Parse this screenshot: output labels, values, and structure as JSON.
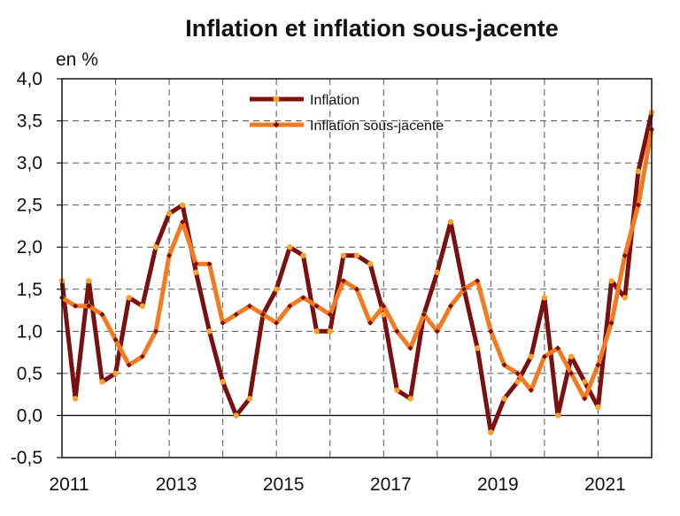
{
  "chart_data": {
    "type": "line",
    "title": "Inflation et inflation sous-jacente",
    "ylabel": "en %",
    "xlabel": "",
    "ylim": [
      -0.5,
      4.0
    ],
    "yticks": [
      -0.5,
      0.0,
      0.5,
      1.0,
      1.5,
      2.0,
      2.5,
      3.0,
      3.5,
      4.0
    ],
    "ytick_labels": [
      "-0,5",
      "0,0",
      "0,5",
      "1,0",
      "1,5",
      "2,0",
      "2,5",
      "3,0",
      "3,5",
      "4,0"
    ],
    "xlim": [
      2011.0,
      2022.0
    ],
    "xticks": [
      2011,
      2013,
      2015,
      2017,
      2019,
      2021
    ],
    "xtick_labels": [
      "2011",
      "2013",
      "2015",
      "2017",
      "2019",
      "2021"
    ],
    "vgrid": [
      2012,
      2013,
      2014,
      2015,
      2016,
      2017,
      2018,
      2019,
      2020,
      2021,
      2022
    ],
    "grid": true,
    "legend_position": "top-center",
    "series": [
      {
        "name": "Inflation",
        "color": "#7b1010",
        "marker_color": "#f7a32a",
        "x": [
          2011.0,
          2011.25,
          2011.5,
          2011.75,
          2012.0,
          2012.25,
          2012.5,
          2012.75,
          2013.0,
          2013.25,
          2013.5,
          2013.75,
          2014.0,
          2014.25,
          2014.5,
          2014.75,
          2015.0,
          2015.25,
          2015.5,
          2015.75,
          2016.0,
          2016.25,
          2016.5,
          2016.75,
          2017.0,
          2017.25,
          2017.5,
          2017.75,
          2018.0,
          2018.25,
          2018.5,
          2018.75,
          2019.0,
          2019.25,
          2019.5,
          2019.75,
          2020.0,
          2020.25,
          2020.5,
          2020.75,
          2021.0,
          2021.25,
          2021.5,
          2021.75,
          2022.0
        ],
        "values": [
          1.6,
          0.2,
          1.6,
          0.4,
          0.5,
          1.4,
          1.3,
          2.0,
          2.4,
          2.5,
          1.7,
          1.0,
          0.4,
          0.0,
          0.2,
          1.2,
          1.5,
          2.0,
          1.9,
          1.0,
          1.0,
          1.9,
          1.9,
          1.8,
          1.2,
          0.3,
          0.2,
          1.2,
          1.7,
          2.3,
          1.5,
          0.8,
          -0.2,
          0.2,
          0.4,
          0.7,
          1.4,
          0.0,
          0.7,
          0.4,
          0.1,
          1.6,
          1.4,
          2.9,
          3.6
        ]
      },
      {
        "name": "Inflation sous-jacente",
        "color": "#f47a1f",
        "marker_color": "#7b1010",
        "x": [
          2011.0,
          2011.25,
          2011.5,
          2011.75,
          2012.0,
          2012.25,
          2012.5,
          2012.75,
          2013.0,
          2013.25,
          2013.5,
          2013.75,
          2014.0,
          2014.25,
          2014.5,
          2014.75,
          2015.0,
          2015.25,
          2015.5,
          2015.75,
          2016.0,
          2016.25,
          2016.5,
          2016.75,
          2017.0,
          2017.25,
          2017.5,
          2017.75,
          2018.0,
          2018.25,
          2018.5,
          2018.75,
          2019.0,
          2019.25,
          2019.5,
          2019.75,
          2020.0,
          2020.25,
          2020.5,
          2020.75,
          2021.0,
          2021.25,
          2021.5,
          2021.75,
          2022.0
        ],
        "values": [
          1.4,
          1.3,
          1.3,
          1.2,
          0.9,
          0.6,
          0.7,
          1.0,
          1.9,
          2.3,
          1.8,
          1.8,
          1.1,
          1.2,
          1.3,
          1.2,
          1.1,
          1.3,
          1.4,
          1.3,
          1.2,
          1.6,
          1.5,
          1.1,
          1.3,
          1.0,
          0.8,
          1.2,
          1.0,
          1.3,
          1.5,
          1.6,
          1.0,
          0.6,
          0.5,
          0.3,
          0.7,
          0.8,
          0.5,
          0.2,
          0.6,
          1.1,
          1.9,
          2.5,
          3.4
        ]
      }
    ]
  }
}
